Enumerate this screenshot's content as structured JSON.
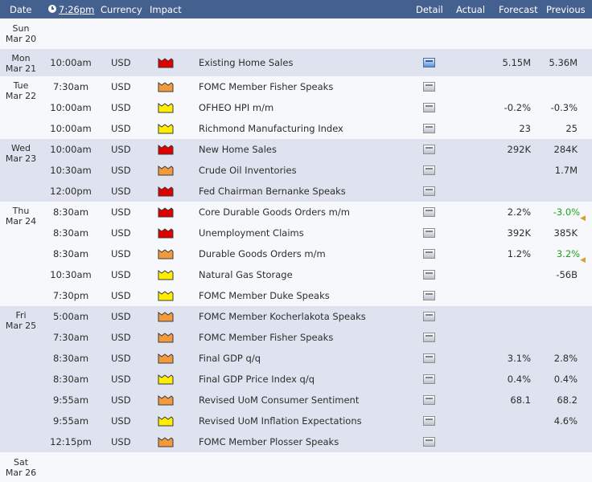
{
  "header": {
    "date": "Date",
    "time": "7:26pm",
    "currency": "Currency",
    "impact": "Impact",
    "detail": "Detail",
    "actual": "Actual",
    "forecast": "Forecast",
    "previous": "Previous"
  },
  "impact_colors": {
    "high": "#e00000",
    "medium": "#f39a3e",
    "low": "#ffee00"
  },
  "days": [
    {
      "weekday": "Sun",
      "date": "Mar 20"
    },
    {
      "weekday": "Mon",
      "date": "Mar 21"
    },
    {
      "weekday": "Tue",
      "date": "Mar 22"
    },
    {
      "weekday": "Wed",
      "date": "Mar 23"
    },
    {
      "weekday": "Thu",
      "date": "Mar 24"
    },
    {
      "weekday": "Fri",
      "date": "Mar 25"
    },
    {
      "weekday": "Sat",
      "date": "Mar 26"
    }
  ],
  "events": [
    {
      "time": "10:00am",
      "currency": "USD",
      "impact": "high",
      "detail_icon": "detail-icon-highlighted",
      "event": "Existing Home Sales",
      "actual": "",
      "forecast": "5.15M",
      "previous": "5.36M"
    },
    {
      "time": "7:30am",
      "currency": "USD",
      "impact": "medium",
      "detail_icon": "detail-icon",
      "event": "FOMC Member Fisher Speaks",
      "actual": "",
      "forecast": "",
      "previous": ""
    },
    {
      "time": "10:00am",
      "currency": "USD",
      "impact": "low",
      "detail_icon": "detail-icon",
      "event": "OFHEO HPI m/m",
      "actual": "",
      "forecast": "-0.2%",
      "previous": "-0.3%"
    },
    {
      "time": "10:00am",
      "currency": "USD",
      "impact": "low",
      "detail_icon": "detail-icon",
      "event": "Richmond Manufacturing Index",
      "actual": "",
      "forecast": "23",
      "previous": "25"
    },
    {
      "time": "10:00am",
      "currency": "USD",
      "impact": "high",
      "detail_icon": "detail-icon",
      "event": "New Home Sales",
      "actual": "",
      "forecast": "292K",
      "previous": "284K"
    },
    {
      "time": "10:30am",
      "currency": "USD",
      "impact": "medium",
      "detail_icon": "detail-icon",
      "event": "Crude Oil Inventories",
      "actual": "",
      "forecast": "",
      "previous": "1.7M"
    },
    {
      "time": "12:00pm",
      "currency": "USD",
      "impact": "high",
      "detail_icon": "detail-icon",
      "event": "Fed Chairman Bernanke Speaks",
      "actual": "",
      "forecast": "",
      "previous": ""
    },
    {
      "time": "8:30am",
      "currency": "USD",
      "impact": "high",
      "detail_icon": "detail-icon",
      "event": "Core Durable Goods Orders m/m",
      "actual": "",
      "forecast": "2.2%",
      "previous": "-3.0%",
      "previous_revised": true
    },
    {
      "time": "8:30am",
      "currency": "USD",
      "impact": "high",
      "detail_icon": "detail-icon",
      "event": "Unemployment Claims",
      "actual": "",
      "forecast": "392K",
      "previous": "385K"
    },
    {
      "time": "8:30am",
      "currency": "USD",
      "impact": "medium",
      "detail_icon": "detail-icon",
      "event": "Durable Goods Orders m/m",
      "actual": "",
      "forecast": "1.2%",
      "previous": "3.2%",
      "previous_revised": true
    },
    {
      "time": "10:30am",
      "currency": "USD",
      "impact": "low",
      "detail_icon": "detail-icon",
      "event": "Natural Gas Storage",
      "actual": "",
      "forecast": "",
      "previous": "-56B"
    },
    {
      "time": "7:30pm",
      "currency": "USD",
      "impact": "low",
      "detail_icon": "detail-icon",
      "event": "FOMC Member Duke Speaks",
      "actual": "",
      "forecast": "",
      "previous": ""
    },
    {
      "time": "5:00am",
      "currency": "USD",
      "impact": "medium",
      "detail_icon": "detail-icon",
      "event": "FOMC Member Kocherlakota Speaks",
      "actual": "",
      "forecast": "",
      "previous": ""
    },
    {
      "time": "7:30am",
      "currency": "USD",
      "impact": "medium",
      "detail_icon": "detail-icon",
      "event": "FOMC Member Fisher Speaks",
      "actual": "",
      "forecast": "",
      "previous": ""
    },
    {
      "time": "8:30am",
      "currency": "USD",
      "impact": "medium",
      "detail_icon": "detail-icon",
      "event": "Final GDP q/q",
      "actual": "",
      "forecast": "3.1%",
      "previous": "2.8%"
    },
    {
      "time": "8:30am",
      "currency": "USD",
      "impact": "low",
      "detail_icon": "detail-icon",
      "event": "Final GDP Price Index q/q",
      "actual": "",
      "forecast": "0.4%",
      "previous": "0.4%"
    },
    {
      "time": "9:55am",
      "currency": "USD",
      "impact": "medium",
      "detail_icon": "detail-icon",
      "event": "Revised UoM Consumer Sentiment",
      "actual": "",
      "forecast": "68.1",
      "previous": "68.2"
    },
    {
      "time": "9:55am",
      "currency": "USD",
      "impact": "low",
      "detail_icon": "detail-icon",
      "event": "Revised UoM Inflation Expectations",
      "actual": "",
      "forecast": "",
      "previous": "4.6%"
    },
    {
      "time": "12:15pm",
      "currency": "USD",
      "impact": "medium",
      "detail_icon": "detail-icon",
      "event": "FOMC Member Plosser Speaks",
      "actual": "",
      "forecast": "",
      "previous": ""
    }
  ]
}
